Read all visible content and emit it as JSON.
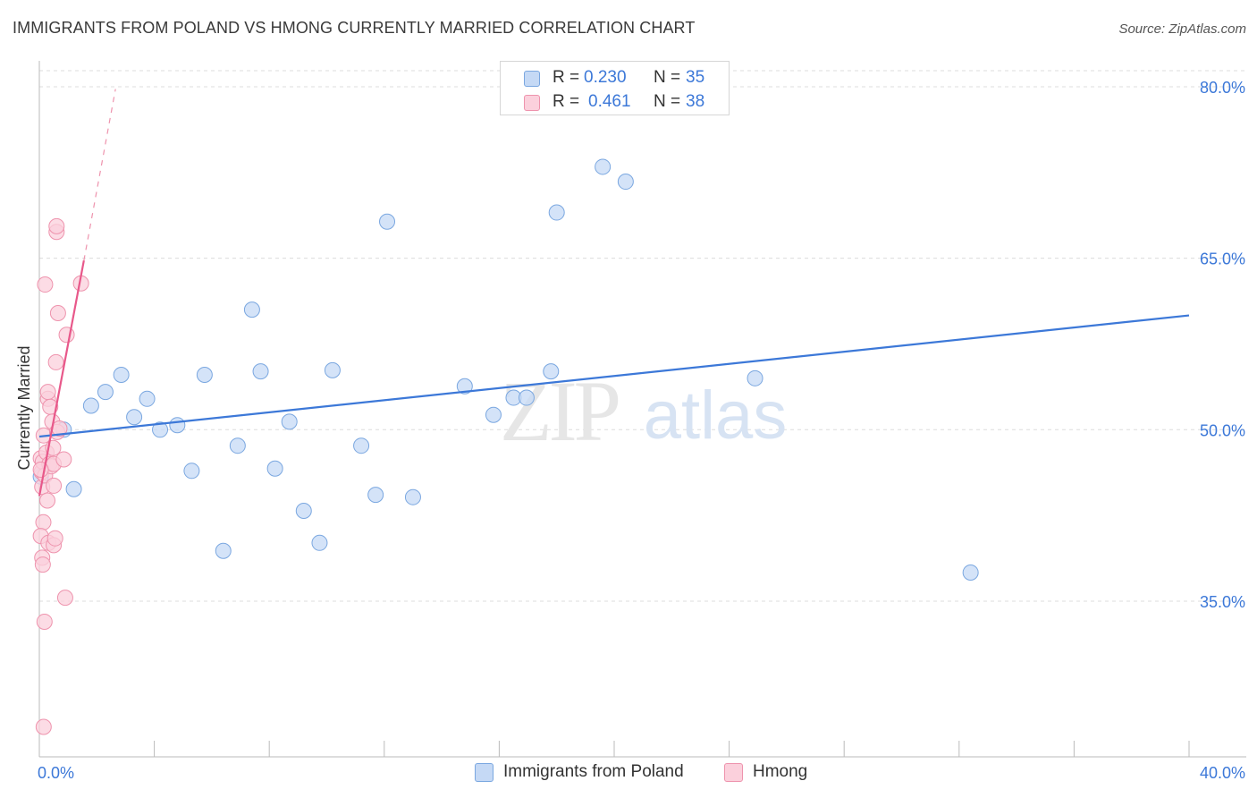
{
  "title": "IMMIGRANTS FROM POLAND VS HMONG CURRENTLY MARRIED CORRELATION CHART",
  "source": "Source: ZipAtlas.com",
  "watermark": {
    "zip": "ZIP",
    "atlas": "atlas"
  },
  "legend_stats": [
    {
      "r_label": "R =",
      "r_value": "0.230",
      "n_label": "N =",
      "n_value": "35",
      "fill": "#c5d9f5",
      "stroke": "#7aa7e0"
    },
    {
      "r_label": "R =",
      "r_value": "0.461",
      "n_label": "N =",
      "n_value": "38",
      "fill": "#fbd0dc",
      "stroke": "#ee93ad"
    }
  ],
  "chart_data": {
    "type": "scatter",
    "title": "IMMIGRANTS FROM POLAND VS HMONG CURRENTLY MARRIED CORRELATION CHART",
    "xlabel": "",
    "ylabel": "Currently Married",
    "xlim": [
      0,
      40
    ],
    "ylim": [
      21.5,
      83
    ],
    "x_tick_labels": [
      {
        "value": 0,
        "label": "0.0%"
      },
      {
        "value": 40,
        "label": "40.0%"
      }
    ],
    "y_tick_labels": [
      {
        "value": 35,
        "label": "35.0%"
      },
      {
        "value": 50,
        "label": "50.0%"
      },
      {
        "value": 65,
        "label": "65.0%"
      },
      {
        "value": 80,
        "label": "80.0%"
      }
    ],
    "grid": true,
    "series": [
      {
        "name": "Immigrants from Poland",
        "color": "#3c78d8",
        "fill": "#c5d9f5",
        "stroke": "#7aa7e0",
        "trend": {
          "x0": 0,
          "y0": 49.4,
          "x1": 40,
          "y1": 60.0
        },
        "points": [
          {
            "x": 0.05,
            "y": 45.9
          },
          {
            "x": 0.85,
            "y": 50.0
          },
          {
            "x": 1.2,
            "y": 44.8
          },
          {
            "x": 1.8,
            "y": 52.1
          },
          {
            "x": 2.3,
            "y": 53.3
          },
          {
            "x": 2.85,
            "y": 54.8
          },
          {
            "x": 3.3,
            "y": 51.1
          },
          {
            "x": 3.75,
            "y": 52.7
          },
          {
            "x": 4.2,
            "y": 50.0
          },
          {
            "x": 4.8,
            "y": 50.4
          },
          {
            "x": 5.3,
            "y": 46.4
          },
          {
            "x": 5.75,
            "y": 54.8
          },
          {
            "x": 6.4,
            "y": 39.4
          },
          {
            "x": 6.9,
            "y": 48.6
          },
          {
            "x": 7.4,
            "y": 60.5
          },
          {
            "x": 7.7,
            "y": 55.1
          },
          {
            "x": 8.2,
            "y": 46.6
          },
          {
            "x": 8.7,
            "y": 50.7
          },
          {
            "x": 9.2,
            "y": 42.9
          },
          {
            "x": 9.75,
            "y": 40.1
          },
          {
            "x": 10.2,
            "y": 55.2
          },
          {
            "x": 11.2,
            "y": 48.6
          },
          {
            "x": 11.7,
            "y": 44.3
          },
          {
            "x": 12.1,
            "y": 68.2
          },
          {
            "x": 13.0,
            "y": 44.1
          },
          {
            "x": 14.8,
            "y": 53.8
          },
          {
            "x": 15.8,
            "y": 51.3
          },
          {
            "x": 16.5,
            "y": 52.8
          },
          {
            "x": 16.95,
            "y": 52.8
          },
          {
            "x": 17.8,
            "y": 55.1
          },
          {
            "x": 18.0,
            "y": 69.0
          },
          {
            "x": 19.6,
            "y": 73.0
          },
          {
            "x": 20.4,
            "y": 71.7
          },
          {
            "x": 24.9,
            "y": 54.5
          },
          {
            "x": 32.4,
            "y": 37.5
          }
        ]
      },
      {
        "name": "Hmong",
        "color": "#e8588a",
        "fill": "#fbd0dc",
        "stroke": "#ee93ad",
        "trend": {
          "x0": 0,
          "y0": 44.2,
          "x1": 1.55,
          "y1": 64.8
        },
        "trend_dashed": {
          "x0": 1.55,
          "y0": 64.8,
          "x1": 2.65,
          "y1": 79.8
        },
        "points": [
          {
            "x": 0.05,
            "y": 47.5
          },
          {
            "x": 0.08,
            "y": 46.3
          },
          {
            "x": 0.1,
            "y": 45.0
          },
          {
            "x": 0.12,
            "y": 47.2
          },
          {
            "x": 0.14,
            "y": 41.9
          },
          {
            "x": 0.05,
            "y": 40.7
          },
          {
            "x": 0.1,
            "y": 38.8
          },
          {
            "x": 0.12,
            "y": 38.2
          },
          {
            "x": 0.15,
            "y": 49.5
          },
          {
            "x": 0.2,
            "y": 46.0
          },
          {
            "x": 0.2,
            "y": 62.7
          },
          {
            "x": 0.25,
            "y": 48.0
          },
          {
            "x": 0.28,
            "y": 43.8
          },
          {
            "x": 0.3,
            "y": 52.7
          },
          {
            "x": 0.3,
            "y": 53.3
          },
          {
            "x": 0.32,
            "y": 40.1
          },
          {
            "x": 0.35,
            "y": 47.0
          },
          {
            "x": 0.38,
            "y": 52.0
          },
          {
            "x": 0.42,
            "y": 46.8
          },
          {
            "x": 0.45,
            "y": 50.7
          },
          {
            "x": 0.48,
            "y": 48.4
          },
          {
            "x": 0.5,
            "y": 47.0
          },
          {
            "x": 0.5,
            "y": 45.1
          },
          {
            "x": 0.5,
            "y": 39.9
          },
          {
            "x": 0.55,
            "y": 40.5
          },
          {
            "x": 0.58,
            "y": 55.9
          },
          {
            "x": 0.6,
            "y": 67.3
          },
          {
            "x": 0.6,
            "y": 67.8
          },
          {
            "x": 0.62,
            "y": 49.8
          },
          {
            "x": 0.65,
            "y": 60.2
          },
          {
            "x": 0.7,
            "y": 50.1
          },
          {
            "x": 0.85,
            "y": 47.4
          },
          {
            "x": 0.9,
            "y": 35.3
          },
          {
            "x": 0.95,
            "y": 58.3
          },
          {
            "x": 1.45,
            "y": 62.8
          },
          {
            "x": 0.18,
            "y": 33.2
          },
          {
            "x": 0.15,
            "y": 24.0
          },
          {
            "x": 0.05,
            "y": 46.5
          }
        ]
      }
    ]
  }
}
